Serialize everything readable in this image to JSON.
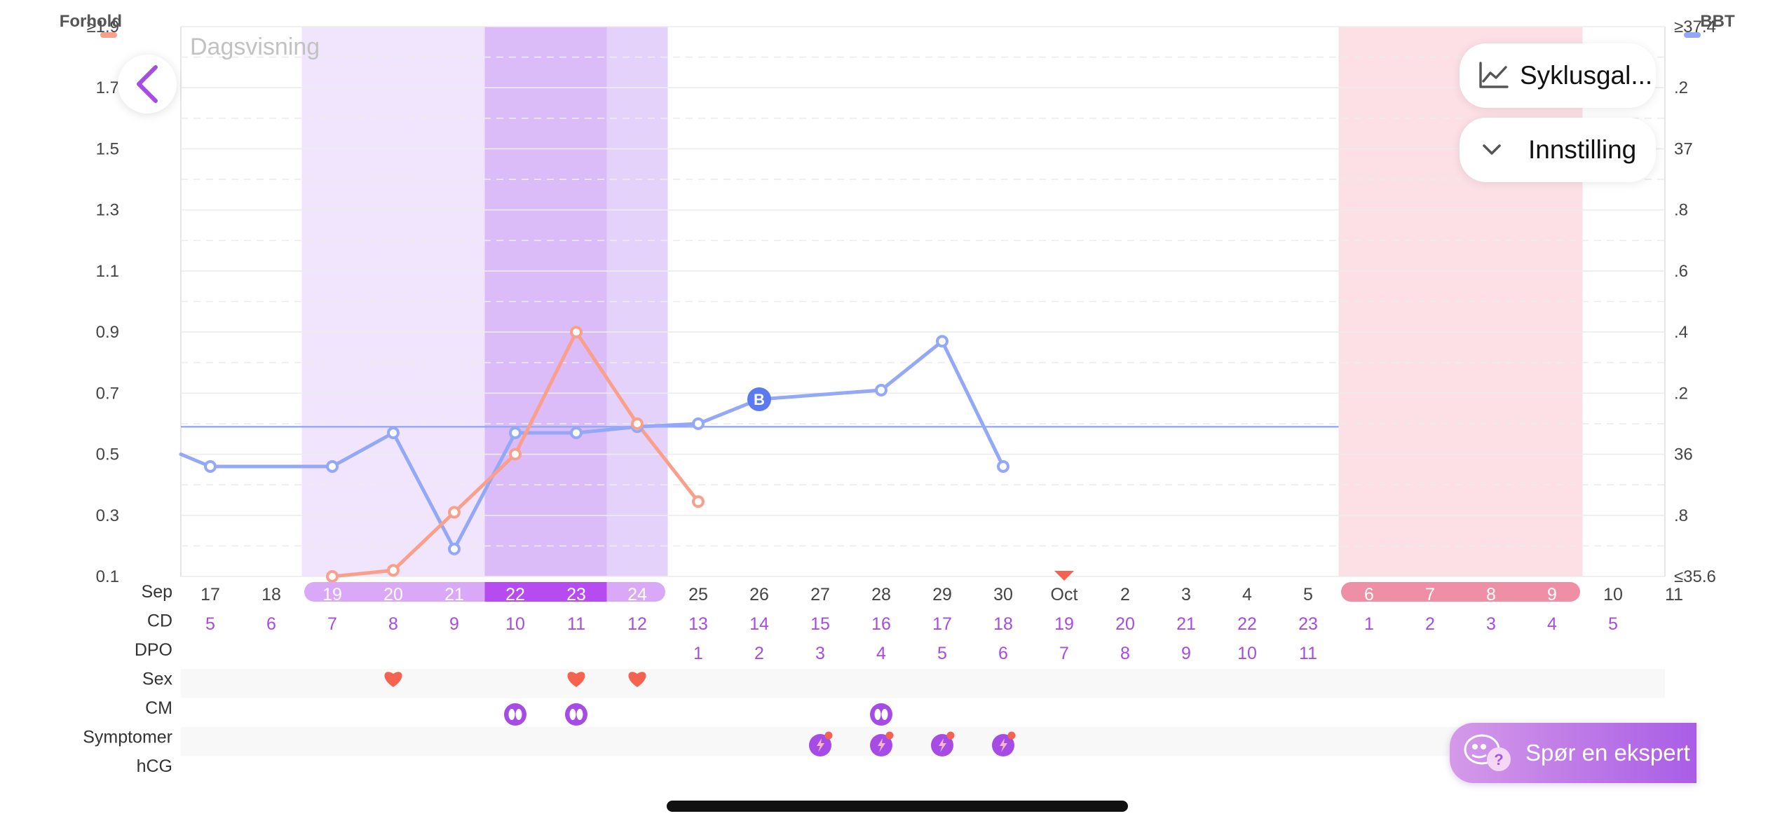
{
  "header": {
    "left_axis_title": "Forhold",
    "right_axis_title": "BBT",
    "view_label": "Dagsvisning"
  },
  "buttons": {
    "chart_type_label": "Syklusgal...",
    "settings_label": "Innstilling",
    "expert_label": "Spør en ekspert"
  },
  "colors": {
    "ratio_series": "#f9a08d",
    "bbt_series": "#93a8f6",
    "coverline": "#93a8f6",
    "fertile_light": "#f0e5fd",
    "fertile_mid": "#e5d2fb",
    "fertile_dark": "#dcbcf8",
    "period_band": "#fde0e6",
    "pill_light": "#d9a9f7",
    "pill_dark": "#b64bf2",
    "pill_period": "#ef8fa5",
    "heart": "#f56350",
    "cm_icon": "#a74be6",
    "symptom_icon": "#a74be6",
    "row_labels": "#333333",
    "cd_text": "#a74be6"
  },
  "chart_data": {
    "type": "line",
    "x_unit": "day",
    "row_labels": {
      "month": "Sep",
      "cd": "CD",
      "dpo": "DPO",
      "sex": "Sex",
      "cm": "CM",
      "symptoms": "Symptomer",
      "hcg": "hCG"
    },
    "dates": [
      "17",
      "18",
      "19",
      "20",
      "21",
      "22",
      "23",
      "24",
      "25",
      "26",
      "27",
      "28",
      "29",
      "30",
      "Oct",
      "2",
      "3",
      "4",
      "5",
      "6",
      "7",
      "8",
      "9",
      "10",
      "11"
    ],
    "cd": [
      "5",
      "6",
      "7",
      "8",
      "9",
      "10",
      "11",
      "12",
      "13",
      "14",
      "15",
      "16",
      "17",
      "18",
      "19",
      "20",
      "21",
      "22",
      "23",
      "1",
      "2",
      "3",
      "4",
      "5",
      ""
    ],
    "dpo": [
      "",
      "",
      "",
      "",
      "",
      "",
      "",
      "",
      "1",
      "2",
      "3",
      "4",
      "5",
      "6",
      "7",
      "8",
      "9",
      "10",
      "11",
      "",
      "",
      "",
      "",
      "",
      ""
    ],
    "left_axis": {
      "ticks": [
        "≥1.9",
        "1.7",
        "1.5",
        "1.3",
        "1.1",
        "0.9",
        "0.7",
        "0.5",
        "0.3",
        "0.1"
      ],
      "range": [
        0.1,
        1.9
      ]
    },
    "right_axis": {
      "ticks": [
        "≥37.4",
        ".2",
        "37",
        ".8",
        ".6",
        ".4",
        ".2",
        "36",
        ".8",
        "≤35.6"
      ],
      "range": [
        35.6,
        37.4
      ]
    },
    "series": [
      {
        "name": "Forhold",
        "axis": "left",
        "points": [
          [
            2,
            0.1
          ],
          [
            3,
            0.12
          ],
          [
            4,
            0.31
          ],
          [
            5,
            0.5
          ],
          [
            6,
            0.9
          ],
          [
            7,
            0.6
          ],
          [
            8,
            0.345
          ]
        ]
      },
      {
        "name": "BBT",
        "axis": "right",
        "start_value": 36.0,
        "points": [
          [
            0,
            35.96
          ],
          [
            2,
            35.96
          ],
          [
            3,
            36.07
          ],
          [
            4,
            35.69
          ],
          [
            5,
            36.07
          ],
          [
            6,
            36.07
          ],
          [
            7,
            36.09
          ],
          [
            8,
            36.1
          ],
          [
            9,
            36.18
          ],
          [
            11,
            36.21
          ],
          [
            12,
            36.37
          ],
          [
            13,
            35.96
          ]
        ]
      }
    ],
    "coverline": 36.09,
    "ovulation_marker": {
      "index": 9,
      "label": "B"
    },
    "period_start_marker_index": 14,
    "fertile_window": {
      "start": 2,
      "end": 7,
      "peak": [
        5,
        6
      ]
    },
    "period_window": {
      "start": 19,
      "end": 22
    },
    "sex_days": [
      3,
      6,
      7
    ],
    "cm_days": [
      5,
      6,
      11
    ],
    "symptom_days": [
      10,
      11,
      12,
      13
    ],
    "grid": true
  }
}
